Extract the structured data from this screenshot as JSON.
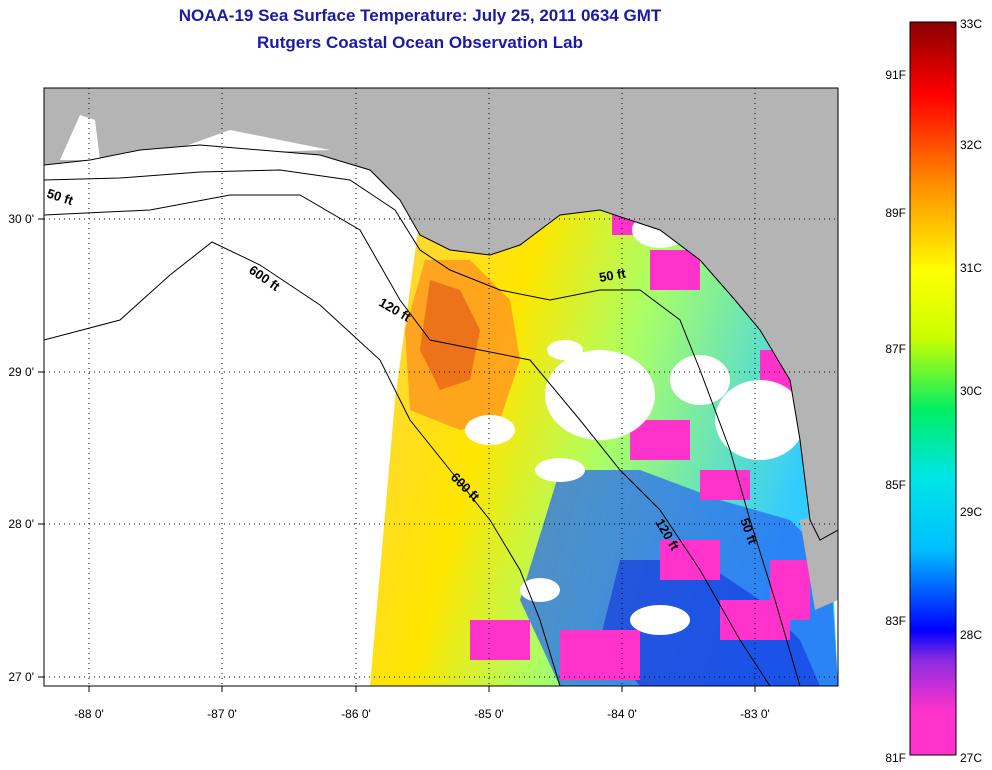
{
  "header": {
    "title": "NOAA-19 Sea Surface Temperature:  July 25, 2011 0634 GMT",
    "subtitle": "Rutgers Coastal Ocean Observation Lab"
  },
  "map": {
    "x_ticks": [
      "-88 0'",
      "-87 0'",
      "-86 0'",
      "-85 0'",
      "-84 0'",
      "-83 0'"
    ],
    "y_ticks": [
      "30 0'",
      "29 0'",
      "28 0'",
      "27 0'"
    ],
    "contour_labels": [
      "50 ft",
      "600 ft",
      "120 ft",
      "50 ft",
      "600 ft",
      "120 ft",
      "50 ft"
    ],
    "colors": {
      "land": "#b4b4b4",
      "no_data": "#ffffff",
      "cloud": "#ffffff"
    }
  },
  "colorbar": {
    "celsius_labels": [
      "33C",
      "32C",
      "31C",
      "30C",
      "29C",
      "28C",
      "27C"
    ],
    "fahrenheit_labels": [
      "91F",
      "89F",
      "87F",
      "85F",
      "83F",
      "81F"
    ],
    "stops": [
      "#ff33cc",
      "#ff33cc",
      "#8a2be2",
      "#0000ff",
      "#00bfff",
      "#00e6e6",
      "#00ee66",
      "#ccff00",
      "#ffff00",
      "#ff8c00",
      "#ff0000",
      "#8b0000"
    ]
  }
}
